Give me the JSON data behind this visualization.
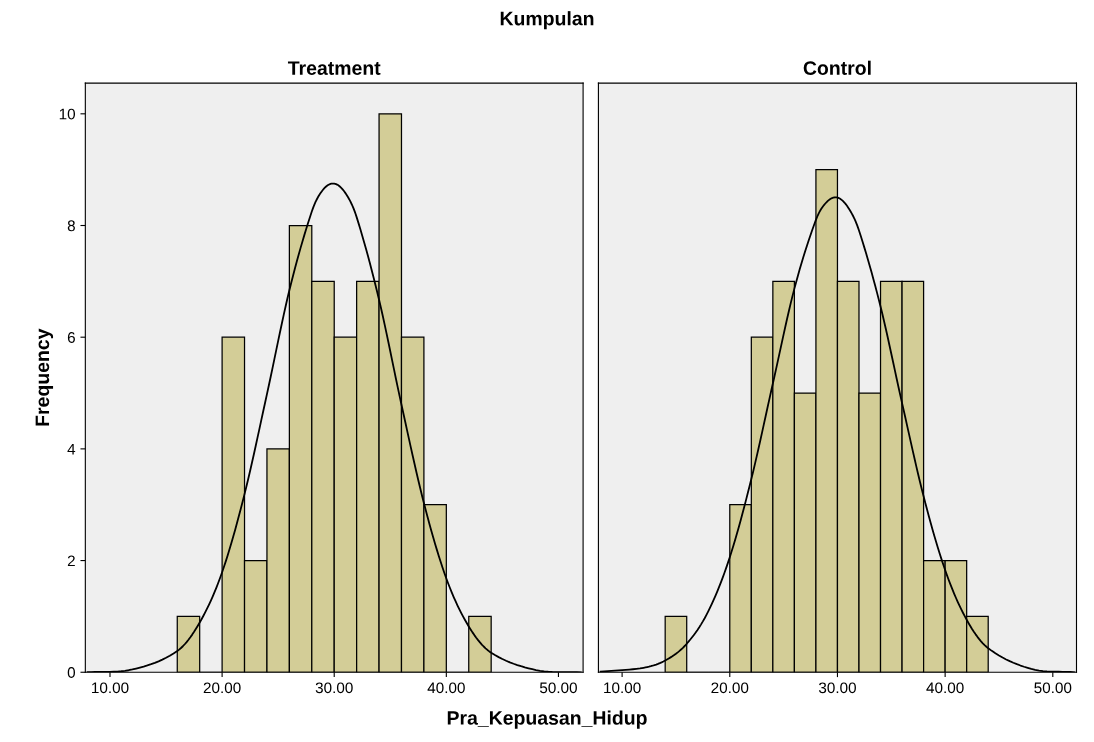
{
  "chart_data": [
    {
      "type": "histogram",
      "title": "Treatment",
      "xlabel": "Pra_Kepuasan_Hidup",
      "ylabel": "Frequency",
      "annotations": [
        "Kumpulan"
      ],
      "xlim": [
        7.8,
        52.2
      ],
      "xticks": [
        {
          "value": 10,
          "label": "10.00"
        },
        {
          "value": 20,
          "label": "20.00"
        },
        {
          "value": 30,
          "label": "30.00"
        },
        {
          "value": 40,
          "label": "40.00"
        },
        {
          "value": 50,
          "label": "50.00"
        }
      ],
      "ylim": [
        0,
        10.55
      ],
      "yticks": [
        0,
        2,
        4,
        6,
        8,
        10
      ],
      "grid": false,
      "series": [
        {
          "color": "#d3cd97",
          "bins": [
            16,
            18,
            20,
            22,
            24,
            26,
            28,
            30,
            32,
            34,
            36,
            38,
            40,
            42,
            44
          ],
          "values": [
            1,
            0,
            6,
            2,
            4,
            8,
            7,
            6,
            7,
            10,
            6,
            3,
            0,
            1
          ]
        },
        {
          "type": "line",
          "color": "#000000",
          "x": [
            8,
            12,
            16,
            18,
            20,
            22,
            24,
            26,
            28,
            29,
            30,
            31,
            32,
            34,
            36,
            38,
            40,
            42,
            44,
            48,
            52
          ],
          "values": [
            0.0,
            0.05,
            0.38,
            0.89,
            1.79,
            3.19,
            4.98,
            6.84,
            8.25,
            8.64,
            8.75,
            8.58,
            8.15,
            6.67,
            4.79,
            3.03,
            1.68,
            0.82,
            0.35,
            0.04,
            0.0
          ]
        }
      ]
    },
    {
      "type": "histogram",
      "title": "Control",
      "tick_labels": "x",
      "xlim": [
        7.8,
        52.2
      ],
      "xticks": [
        {
          "value": 10,
          "label": "10.00"
        },
        {
          "value": 20,
          "label": "20.00"
        },
        {
          "value": 30,
          "label": "30.00"
        },
        {
          "value": 40,
          "label": "40.00"
        },
        {
          "value": 50,
          "label": "50.00"
        }
      ],
      "ylim": [
        0,
        10.55
      ],
      "yticks": [
        0,
        2,
        4,
        6,
        8,
        10
      ],
      "grid": false,
      "series": [
        {
          "color": "#d3cd97",
          "bins": [
            14,
            16,
            18,
            20,
            22,
            24,
            26,
            28,
            30,
            32,
            34,
            36,
            38,
            40,
            42,
            44
          ],
          "values": [
            1,
            0,
            0,
            3,
            6,
            7,
            5,
            9,
            7,
            5,
            7,
            7,
            2,
            2,
            1
          ]
        },
        {
          "type": "line",
          "color": "#000000",
          "x": [
            8,
            12,
            14,
            16,
            18,
            20,
            22,
            24,
            26,
            28,
            29,
            30,
            31,
            32,
            34,
            36,
            38,
            40,
            42,
            44,
            48,
            52
          ],
          "values": [
            0.01,
            0.08,
            0.21,
            0.51,
            1.09,
            2.06,
            3.46,
            5.17,
            6.87,
            8.1,
            8.42,
            8.5,
            8.32,
            7.91,
            6.55,
            4.82,
            3.15,
            1.83,
            0.94,
            0.43,
            0.06,
            0.0
          ]
        }
      ]
    }
  ]
}
